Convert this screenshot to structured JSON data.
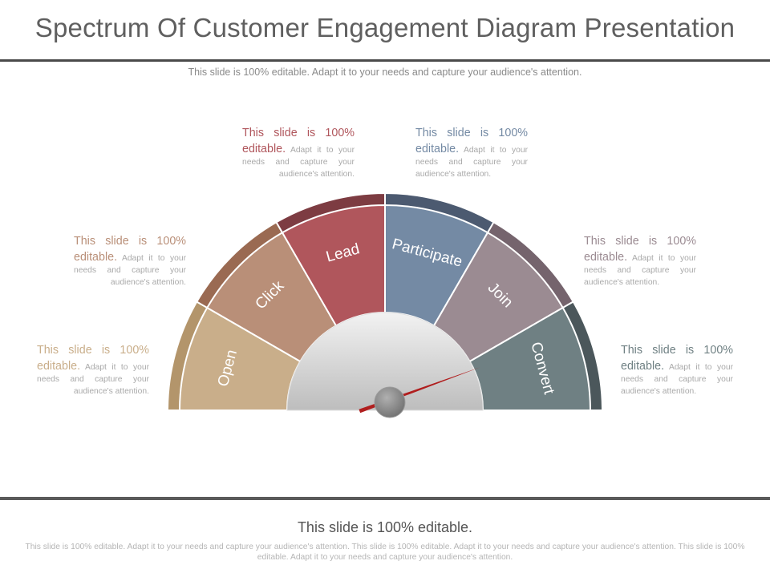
{
  "title": "Spectrum Of Customer Engagement Diagram Presentation",
  "subtitle": "This slide is 100% editable. Adapt it to your needs and capture your audience's attention.",
  "stages": [
    {
      "label": "Open",
      "color": "#c9ae8a",
      "rim": "#b3956b"
    },
    {
      "label": "Click",
      "color": "#b98f78",
      "rim": "#9a6a52"
    },
    {
      "label": "Lead",
      "color": "#b0565c",
      "rim": "#7d3c42"
    },
    {
      "label": "Participate",
      "color": "#748aa4",
      "rim": "#4c5a70"
    },
    {
      "label": "Join",
      "color": "#9b8b92",
      "rim": "#75646d"
    },
    {
      "label": "Convert",
      "color": "#6f8083",
      "rim": "#4b575b"
    }
  ],
  "notes": [
    {
      "heading": "This slide is 100% editable.",
      "body": "Adapt it to your needs and capture your audience's attention.",
      "color": "#c9ae8a"
    },
    {
      "heading": "This slide is 100% editable.",
      "body": "Adapt it to your needs and capture your audience's attention.",
      "color": "#b98f78"
    },
    {
      "heading": "This slide is 100% editable.",
      "body": "Adapt it to your needs and capture your audience's attention.",
      "color": "#b0565c"
    },
    {
      "heading": "This slide is 100% editable.",
      "body": "Adapt it to your needs and capture your audience's attention.",
      "color": "#748aa4"
    },
    {
      "heading": "This slide is 100% editable.",
      "body": "Adapt it to your needs and capture your audience's attention.",
      "color": "#9b8b92"
    },
    {
      "heading": "This slide is 100% editable.",
      "body": "Adapt it to your needs and capture your audience's attention.",
      "color": "#6f8083"
    }
  ],
  "footer": {
    "title": "This slide is 100% editable.",
    "text": "This slide is 100% editable. Adapt it to your needs and capture your audience's attention. This slide is 100% editable. Adapt it to your needs and capture your audience's attention. This slide is 100% editable. Adapt it to your needs and capture your audience's attention."
  },
  "colors": {
    "needle": "#b01e1e",
    "hub": "#8a8a8a",
    "dial_light": "#f2f2f2",
    "dial_dark": "#bdbdbd",
    "divider": "#ffffff"
  }
}
